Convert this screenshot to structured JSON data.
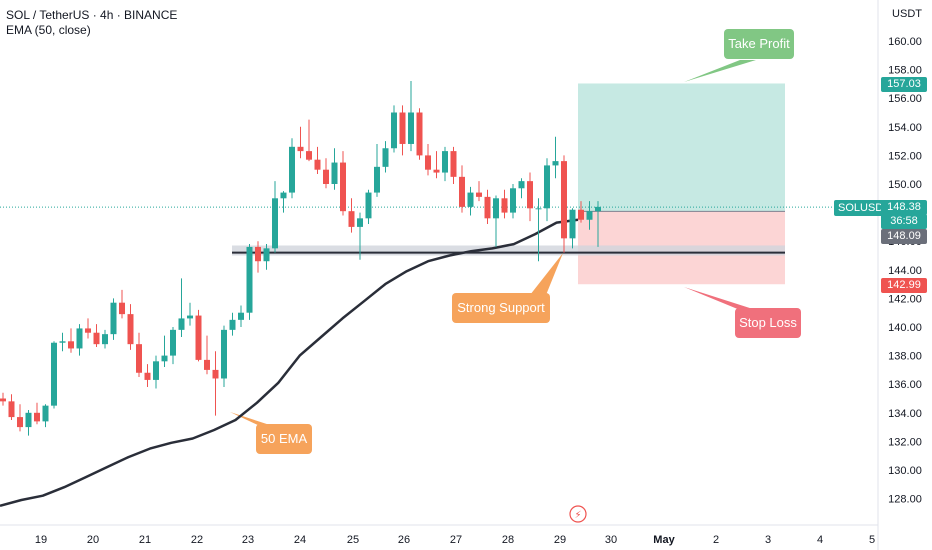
{
  "header": {
    "title": "SOL / TetherUS · 4h · BINANCE",
    "indicator": "EMA (50, close)"
  },
  "currency_label": "USDT",
  "price_labels": {
    "target": "157.03",
    "symbol": "SOLUSDT",
    "last": "148.38",
    "countdown": "36:58",
    "entry": "148.09",
    "stop": "142.99"
  },
  "callouts": {
    "take_profit": "Take Profit",
    "stop_loss": "Stop Loss",
    "support": "Strong Support",
    "ema": "50 EMA"
  },
  "colors": {
    "up": "#26a69a",
    "down": "#ef5350",
    "ema": "#2a2e39",
    "profit_zone": "#c6e9e3",
    "loss_zone": "#fcd5d5",
    "take_profit": "#81c784",
    "stop_loss": "#f0707c",
    "support": "#f6a35b",
    "ema_callout": "#f6a35b"
  },
  "chart_data": {
    "type": "candlestick",
    "y_axis_ticks": [
      128,
      130,
      132,
      134,
      136,
      138,
      140,
      142,
      144,
      146,
      148,
      150,
      152,
      154,
      156,
      158,
      160
    ],
    "ylim": [
      126.5,
      162.5
    ],
    "x_axis_labels": [
      "19",
      "20",
      "21",
      "22",
      "23",
      "24",
      "25",
      "26",
      "27",
      "28",
      "29",
      "30",
      "May",
      "2",
      "3",
      "4",
      "5"
    ],
    "ohlc": [
      [
        135.0,
        135.4,
        134.5,
        134.8
      ],
      [
        134.8,
        135.3,
        133.5,
        133.7
      ],
      [
        133.7,
        134.6,
        132.7,
        133.0
      ],
      [
        133.0,
        134.2,
        132.4,
        134.0
      ],
      [
        134.0,
        134.7,
        133.2,
        133.4
      ],
      [
        133.4,
        134.6,
        133.0,
        134.5
      ],
      [
        134.5,
        139.0,
        134.3,
        138.9
      ],
      [
        138.9,
        139.6,
        138.3,
        139.0
      ],
      [
        139.0,
        139.9,
        138.2,
        138.5
      ],
      [
        138.5,
        140.2,
        138.0,
        139.9
      ],
      [
        139.9,
        140.6,
        139.2,
        139.6
      ],
      [
        139.6,
        140.2,
        138.6,
        138.8
      ],
      [
        138.8,
        139.8,
        138.5,
        139.5
      ],
      [
        139.5,
        142.0,
        139.1,
        141.7
      ],
      [
        141.7,
        142.6,
        140.6,
        140.9
      ],
      [
        140.9,
        141.6,
        138.4,
        138.8
      ],
      [
        138.8,
        139.6,
        136.5,
        136.8
      ],
      [
        136.8,
        137.4,
        135.8,
        136.3
      ],
      [
        136.3,
        138.0,
        135.7,
        137.6
      ],
      [
        137.6,
        139.4,
        137.2,
        138.0
      ],
      [
        138.0,
        140.0,
        137.4,
        139.8
      ],
      [
        139.8,
        143.4,
        139.3,
        140.6
      ],
      [
        140.6,
        141.7,
        140.1,
        140.8
      ],
      [
        140.8,
        141.2,
        137.6,
        137.7
      ],
      [
        137.7,
        139.4,
        136.7,
        137.0
      ],
      [
        137.0,
        138.3,
        133.8,
        136.4
      ],
      [
        136.4,
        140.1,
        135.8,
        139.8
      ],
      [
        139.8,
        141.0,
        139.4,
        140.5
      ],
      [
        140.5,
        141.5,
        140.0,
        141.0
      ],
      [
        141.0,
        145.8,
        140.5,
        145.6
      ],
      [
        145.6,
        146.0,
        143.8,
        144.6
      ],
      [
        144.6,
        145.8,
        144.0,
        145.5
      ],
      [
        145.5,
        150.2,
        145.2,
        149.0
      ],
      [
        149.0,
        149.5,
        148.0,
        149.4
      ],
      [
        149.4,
        153.2,
        149.0,
        152.6
      ],
      [
        152.6,
        154.0,
        151.8,
        152.3
      ],
      [
        152.3,
        154.5,
        151.6,
        151.7
      ],
      [
        151.7,
        152.6,
        150.7,
        151.0
      ],
      [
        151.0,
        151.8,
        149.7,
        150.0
      ],
      [
        150.0,
        152.5,
        149.6,
        151.5
      ],
      [
        151.5,
        152.3,
        147.8,
        148.1
      ],
      [
        148.1,
        149.0,
        146.6,
        147.0
      ],
      [
        147.0,
        148.0,
        144.7,
        147.6
      ],
      [
        147.6,
        149.6,
        147.2,
        149.4
      ],
      [
        149.4,
        152.8,
        149.1,
        151.2
      ],
      [
        151.2,
        153.0,
        150.8,
        152.5
      ],
      [
        152.5,
        155.5,
        152.2,
        155.0
      ],
      [
        155.0,
        155.5,
        152.0,
        152.8
      ],
      [
        152.8,
        157.2,
        152.3,
        155.0
      ],
      [
        155.0,
        155.3,
        151.7,
        152.0
      ],
      [
        152.0,
        152.8,
        150.6,
        151.0
      ],
      [
        151.0,
        152.3,
        150.4,
        150.8
      ],
      [
        150.8,
        152.6,
        150.2,
        152.3
      ],
      [
        152.3,
        152.6,
        150.0,
        150.5
      ],
      [
        150.5,
        151.3,
        148.0,
        148.4
      ],
      [
        148.4,
        149.8,
        147.8,
        149.4
      ],
      [
        149.4,
        150.2,
        148.8,
        149.1
      ],
      [
        149.1,
        149.6,
        147.2,
        147.6
      ],
      [
        147.6,
        149.2,
        145.6,
        149.0
      ],
      [
        149.0,
        149.6,
        147.6,
        148.0
      ],
      [
        148.0,
        150.0,
        147.6,
        149.7
      ],
      [
        149.7,
        150.4,
        149.0,
        150.2
      ],
      [
        150.2,
        150.8,
        147.4,
        148.3
      ],
      [
        148.3,
        149.0,
        144.6,
        148.3
      ],
      [
        148.3,
        151.8,
        147.4,
        151.3
      ],
      [
        151.3,
        153.3,
        150.4,
        151.6
      ],
      [
        151.6,
        152.0,
        145.2,
        146.2
      ],
      [
        146.2,
        148.3,
        145.5,
        148.2
      ],
      [
        148.2,
        148.8,
        147.3,
        147.5
      ],
      [
        147.5,
        148.8,
        146.8,
        148.1
      ],
      [
        148.1,
        148.8,
        145.6,
        148.4
      ]
    ],
    "ema_50": [
      127.5,
      127.9,
      128.2,
      128.8,
      129.5,
      130.2,
      130.9,
      131.5,
      131.9,
      132.2,
      132.8,
      133.5,
      134.7,
      136.1,
      138.0,
      139.3,
      140.6,
      141.8,
      143.0,
      143.9,
      144.6,
      145.0,
      145.3,
      145.5,
      145.8,
      146.5,
      147.3,
      147.5
    ],
    "levels": {
      "take_profit": 157.03,
      "entry": 148.09,
      "stop_loss": 142.99,
      "last_price": 148.38,
      "support_top": 145.7,
      "support_bottom": 145.0,
      "support_line": 145.2
    }
  }
}
